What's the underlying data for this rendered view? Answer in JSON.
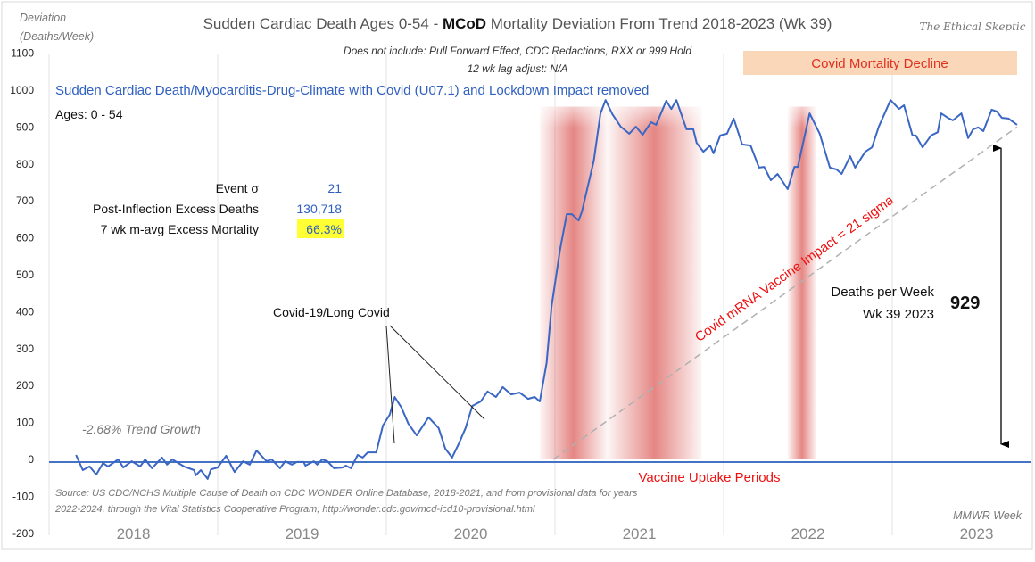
{
  "chart_data": {
    "type": "line",
    "title_parts": [
      "Sudden Cardiac Death Ages 0-54 - ",
      "MCoD",
      " Mortality Deviation From Trend  2018-2023 (Wk 39)"
    ],
    "subtitle_lines": [
      "Does not include: Pull Forward Effect,  CDC Redactions, RXX or 999 Hold",
      "12 wk lag adjust: N/A"
    ],
    "series_label": "Sudden Cardiac Death/Myocarditis-Drug-Climate with Covid (U07.1) and Lockdown Impact removed",
    "ages_label": "Ages: 0 - 54",
    "ylabel_lines": [
      "Deviation",
      "(Deaths/Week)"
    ],
    "xlabel": "MMWR Week",
    "watermark": "The Ethical Skeptic",
    "ylim": [
      -200,
      1100
    ],
    "xlim": [
      2018,
      2023.74
    ],
    "yticks": [
      1100,
      1000,
      900,
      800,
      700,
      600,
      500,
      400,
      300,
      200,
      100,
      0,
      -100,
      -200
    ],
    "xticks": [
      "2018",
      "2019",
      "2020",
      "2021",
      "2022",
      "2023"
    ],
    "grid": {
      "vertical": true,
      "horizontal": false
    },
    "colors": {
      "line": "#3a66c4",
      "zero_line": "#4472c4",
      "bands": "#d9534f",
      "trend": "#b0b0b0",
      "accent_red": "#ee1111",
      "decline_box": "#fad7b8",
      "highlight": "#ffff33"
    },
    "x": [
      2018.16,
      2018.2,
      2018.24,
      2018.28,
      2018.32,
      2018.35,
      2018.41,
      2018.44,
      2018.49,
      2018.54,
      2018.57,
      2018.61,
      2018.67,
      2018.7,
      2018.73,
      2018.8,
      2018.86,
      2018.87,
      2018.9,
      2018.94,
      2018.96,
      2019.0,
      2019.05,
      2019.1,
      2019.15,
      2019.19,
      2019.23,
      2019.29,
      2019.32,
      2019.37,
      2019.4,
      2019.44,
      2019.47,
      2019.51,
      2019.52,
      2019.57,
      2019.59,
      2019.62,
      2019.65,
      2019.69,
      2019.74,
      2019.76,
      2019.79,
      2019.83,
      2019.86,
      2019.89,
      2019.94,
      2019.98,
      2020.02,
      2020.05,
      2020.09,
      2020.13,
      2020.18,
      2020.25,
      2020.31,
      2020.35,
      2020.39,
      2020.43,
      2020.47,
      2020.51,
      2020.56,
      2020.6,
      2020.65,
      2020.69,
      2020.74,
      2020.79,
      2020.84,
      2020.88,
      2020.91,
      2020.95,
      2020.98,
      2021.03,
      2021.07,
      2021.1,
      2021.14,
      2021.16,
      2021.23,
      2021.27,
      2021.3,
      2021.34,
      2021.39,
      2021.44,
      2021.48,
      2021.52,
      2021.57,
      2021.6,
      2021.66,
      2021.69,
      2021.72,
      2021.78,
      2021.82,
      2021.84,
      2021.88,
      2021.92,
      2021.94,
      2021.98,
      2022.02,
      2022.06,
      2022.11,
      2022.16,
      2022.21,
      2022.24,
      2022.28,
      2022.32,
      2022.38,
      2022.42,
      2022.44,
      2022.51,
      2022.57,
      2022.63,
      2022.67,
      2022.7,
      2022.75,
      2022.78,
      2022.84,
      2022.88,
      2022.92,
      2022.99,
      2023.04,
      2023.07,
      2023.12,
      2023.14,
      2023.18,
      2023.23,
      2023.27,
      2023.29,
      2023.33,
      2023.36,
      2023.41,
      2023.45,
      2023.48,
      2023.51,
      2023.54,
      2023.59,
      2023.62,
      2023.65,
      2023.69,
      2023.74
    ],
    "values": [
      12,
      -29,
      -19,
      -41,
      -10,
      -19,
      0,
      -22,
      -5,
      -19,
      0,
      -24,
      5,
      -14,
      0,
      -19,
      -29,
      -43,
      -29,
      -53,
      -27,
      -22,
      10,
      -34,
      -5,
      -14,
      24,
      -5,
      0,
      -24,
      -5,
      -14,
      -7,
      -7,
      -17,
      -5,
      -14,
      0,
      -5,
      -24,
      -22,
      -17,
      -24,
      12,
      5,
      19,
      19,
      92,
      121,
      169,
      140,
      97,
      65,
      114,
      85,
      29,
      5,
      43,
      85,
      145,
      157,
      184,
      169,
      196,
      176,
      181,
      164,
      169,
      157,
      261,
      415,
      568,
      664,
      664,
      647,
      671,
      809,
      937,
      973,
      935,
      901,
      882,
      901,
      879,
      913,
      906,
      971,
      949,
      973,
      894,
      894,
      857,
      833,
      850,
      829,
      877,
      882,
      923,
      853,
      850,
      790,
      792,
      756,
      773,
      732,
      792,
      792,
      937,
      882,
      790,
      785,
      773,
      821,
      790,
      833,
      845,
      901,
      973,
      949,
      959,
      877,
      877,
      845,
      877,
      886,
      937,
      925,
      918,
      937,
      870,
      894,
      899,
      889,
      947,
      942,
      925,
      923,
      906
    ],
    "vaccine_bands": [
      [
        2020.91,
        2021.31,
        2021.16
      ],
      [
        2021.31,
        2021.87,
        2021.66
      ],
      [
        2022.38,
        2022.55,
        2022.46
      ]
    ],
    "trend_line": {
      "from": [
        2020.99,
        0
      ],
      "to": [
        2023.74,
        900
      ],
      "label": "Covid mRNA Vaccine Impact = 21 sigma"
    },
    "stats": [
      {
        "label": "Event σ",
        "value": "21"
      },
      {
        "label": "Post-Inflection Excess Deaths",
        "value": "130,718"
      },
      {
        "label": "7 wk m-avg Excess Mortality",
        "value": "66.3%",
        "highlighted": true
      }
    ],
    "annotations": {
      "covid_label": "Covid-19/Long Covid",
      "trend_growth": "-2.68% Trend Growth",
      "vaccine_periods": "Vaccine Uptake Periods",
      "decline": "Covid Mortality Decline",
      "deaths_per_week_lines": [
        "Deaths per Week",
        "Wk 39 2023"
      ],
      "deaths_value": "929"
    },
    "source_lines": [
      "Source: US CDC/NCHS Multiple Cause of Death on CDC WONDER Online Database, 2018-2021, and from provisional data for years",
      "2022-2024, through the Vital Statistics Cooperative Program; http://wonder.cdc.gov/mcd-icd10-provisional.html"
    ]
  }
}
